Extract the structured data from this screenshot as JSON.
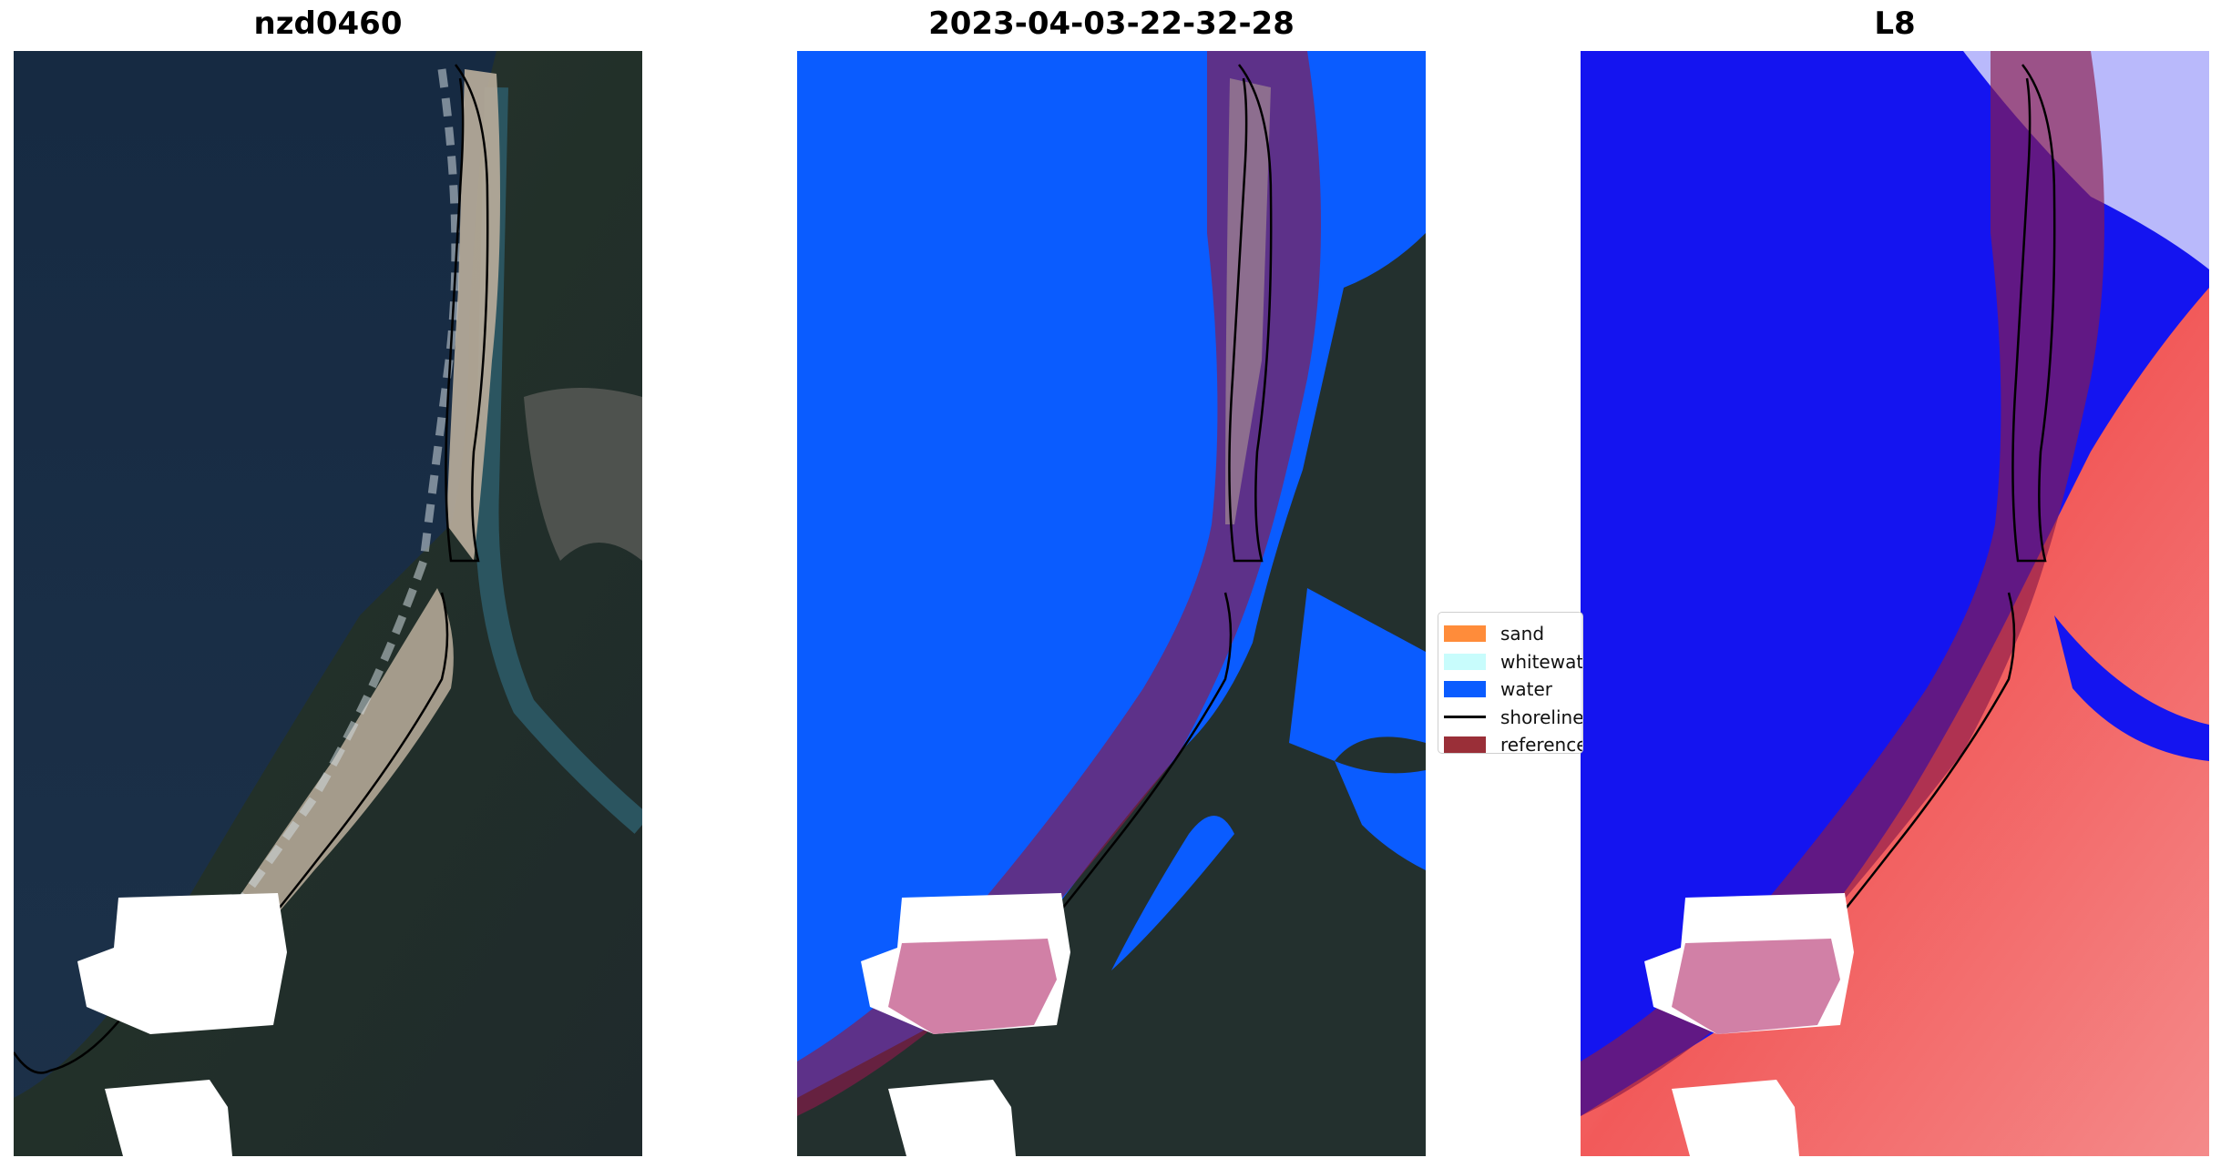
{
  "panels": [
    {
      "title": "nzd0460",
      "layer": "rgb"
    },
    {
      "title": "2023-04-03-22-32-28",
      "layer": "classified"
    },
    {
      "title": "L8",
      "layer": "index"
    }
  ],
  "legend": {
    "items": [
      {
        "label": "sand",
        "color": "#ff8c3a",
        "kind": "patch"
      },
      {
        "label": "whitewater",
        "color": "#c8fcfc",
        "kind": "patch"
      },
      {
        "label": "water",
        "color": "#0a5cff",
        "kind": "patch"
      },
      {
        "label": "shoreline",
        "color": "#000000",
        "kind": "line"
      },
      {
        "label": "reference",
        "color": "#9a2f38",
        "kind": "patch"
      }
    ]
  },
  "colors": {
    "ocean_rgb": "#1a2d45",
    "land_rgb": "#23302e",
    "sand_rgb": "#b9ac9c",
    "classified_water": "#0a5cff",
    "index_water": "#1414f0",
    "index_land": "#f25a5a",
    "buffer_overlay": "#8b1a4a",
    "cloud_mask": "#ffffff"
  }
}
